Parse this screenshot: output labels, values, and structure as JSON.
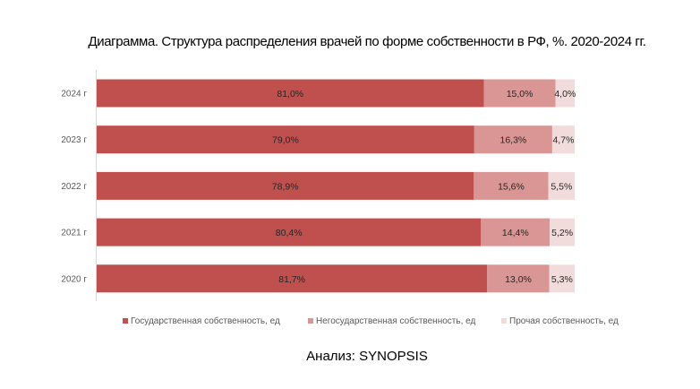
{
  "chart_data": {
    "type": "bar",
    "orientation": "horizontal",
    "stacked": "percent",
    "title": "Диаграмма. Структура распределения врачей по форме собственности в РФ, %. 2020-2024 гг.",
    "categories": [
      "2024 г",
      "2023 г",
      "2022 г",
      "2021 г",
      "2020 г"
    ],
    "series": [
      {
        "name": "Государственная собственность, ед",
        "color": "#C0504D",
        "values": [
          81.0,
          79.0,
          78.9,
          80.4,
          81.7
        ],
        "labels": [
          "81,0%",
          "79,0%",
          "78,9%",
          "80,4%",
          "81,7%"
        ]
      },
      {
        "name": "Негосударственная собственность, ед",
        "color": "#D99694",
        "values": [
          15.0,
          16.3,
          15.6,
          14.4,
          13.0
        ],
        "labels": [
          "15,0%",
          "16,3%",
          "15,6%",
          "14,4%",
          "13,0%"
        ]
      },
      {
        "name": "Прочая собственность, ед",
        "color": "#F2DCDB",
        "values": [
          4.0,
          4.7,
          5.5,
          5.2,
          5.3
        ],
        "labels": [
          "4,0%",
          "4,7%",
          "5,5%",
          "5,2%",
          "5,3%"
        ]
      }
    ],
    "xlim": [
      0,
      100
    ],
    "grid": false,
    "legend": "bottom"
  },
  "footer": "Анализ: SYNOPSIS"
}
